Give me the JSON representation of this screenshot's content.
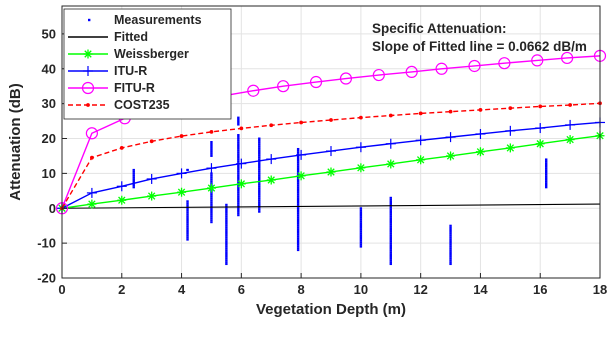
{
  "chart_data": {
    "type": "line",
    "xlabel": "Vegetation Depth (m)",
    "ylabel": "Attenuation (dB)",
    "xlim": [
      0,
      18
    ],
    "ylim": [
      -20,
      58
    ],
    "xticks": [
      "0",
      "2",
      "4",
      "6",
      "8",
      "10",
      "12",
      "14",
      "16",
      "18"
    ],
    "yticks": [
      "-20",
      "-10",
      "0",
      "10",
      "20",
      "30",
      "40",
      "50"
    ],
    "grid": true,
    "legend_position": "top-left",
    "annotation": [
      "Specific Attenuation:",
      "Slope of Fitted line = 0.0662 dB/m"
    ],
    "series": [
      {
        "name": "Measurements",
        "style": "dots",
        "color": "#0000ff",
        "clusters": [
          {
            "x": 2.4,
            "y_min": 6,
            "y_max": 11
          },
          {
            "x": 4.2,
            "y_min": -9,
            "y_max": 2
          },
          {
            "x": 4.2,
            "y_min": 11,
            "y_max": 11
          },
          {
            "x": 5.0,
            "y_min": -4,
            "y_max": 10
          },
          {
            "x": 5.0,
            "y_min": 15,
            "y_max": 19
          },
          {
            "x": 5.5,
            "y_min": -16,
            "y_max": 1
          },
          {
            "x": 5.9,
            "y_min": -2,
            "y_max": 21
          },
          {
            "x": 5.9,
            "y_min": 24,
            "y_max": 26
          },
          {
            "x": 6.6,
            "y_min": -1,
            "y_max": 20
          },
          {
            "x": 7.9,
            "y_min": -12,
            "y_max": 17
          },
          {
            "x": 10.0,
            "y_min": -11,
            "y_max": 0
          },
          {
            "x": 11.0,
            "y_min": -16,
            "y_max": 3
          },
          {
            "x": 13.0,
            "y_min": -16,
            "y_max": -5
          },
          {
            "x": 16.2,
            "y_min": 6,
            "y_max": 14
          }
        ]
      },
      {
        "name": "Fitted",
        "style": "line",
        "color": "#000000",
        "x": [
          0,
          18
        ],
        "y": [
          0,
          1.19
        ]
      },
      {
        "name": "Weissberger",
        "style": "line-star",
        "color": "#00ff00",
        "x": [
          0,
          1.0,
          2.0,
          3.0,
          4.0,
          5.0,
          6.0,
          7.0,
          8.0,
          9.0,
          10.0,
          11.0,
          12.0,
          13.0,
          14.0,
          15.0,
          16.0,
          17.0,
          18.0
        ],
        "y": [
          0,
          1.2,
          2.3,
          3.5,
          4.6,
          5.8,
          7.0,
          8.1,
          9.3,
          10.4,
          11.6,
          12.7,
          13.9,
          15.0,
          16.2,
          17.3,
          18.5,
          19.7,
          20.8
        ]
      },
      {
        "name": "ITU-R",
        "style": "line-plus",
        "color": "#0000ff",
        "x": [
          0,
          1.0,
          2.0,
          3.0,
          4.0,
          5.0,
          6.0,
          7.0,
          8.0,
          9.0,
          10.0,
          11.0,
          12.0,
          13.0,
          14.0,
          15.0,
          16.0,
          17.0,
          18.0
        ],
        "y": [
          0,
          4.4,
          6.3,
          8.4,
          10.0,
          11.5,
          12.8,
          14.1,
          15.3,
          16.4,
          17.5,
          18.5,
          19.5,
          20.4,
          21.3,
          22.2,
          23.0,
          23.9,
          24.6
        ]
      },
      {
        "name": "FITU-R",
        "style": "line-circle",
        "color": "#ff00ff",
        "x": [
          0,
          1.0,
          2.1,
          3.2,
          4.2,
          5.3,
          6.4,
          7.4,
          8.5,
          9.5,
          10.6,
          11.7,
          12.7,
          13.8,
          14.8,
          15.9,
          16.9,
          18.0
        ],
        "y": [
          0,
          21.5,
          25.8,
          28.5,
          30.4,
          32.1,
          33.7,
          35.0,
          36.2,
          37.2,
          38.2,
          39.1,
          40.0,
          40.8,
          41.6,
          42.4,
          43.1,
          43.7
        ]
      },
      {
        "name": "COST235",
        "style": "dashed-dot",
        "color": "#ff0000",
        "x": [
          0,
          1.0,
          2.0,
          3.0,
          4.0,
          5.0,
          6.0,
          7.0,
          8.0,
          9.0,
          10.0,
          11.0,
          12.0,
          13.0,
          14.0,
          15.0,
          16.0,
          17.0,
          18.0
        ],
        "y": [
          0,
          14.5,
          17.3,
          19.2,
          20.7,
          21.9,
          22.9,
          23.8,
          24.6,
          25.3,
          26.0,
          26.6,
          27.2,
          27.7,
          28.2,
          28.7,
          29.2,
          29.6,
          30.1
        ]
      }
    ]
  }
}
